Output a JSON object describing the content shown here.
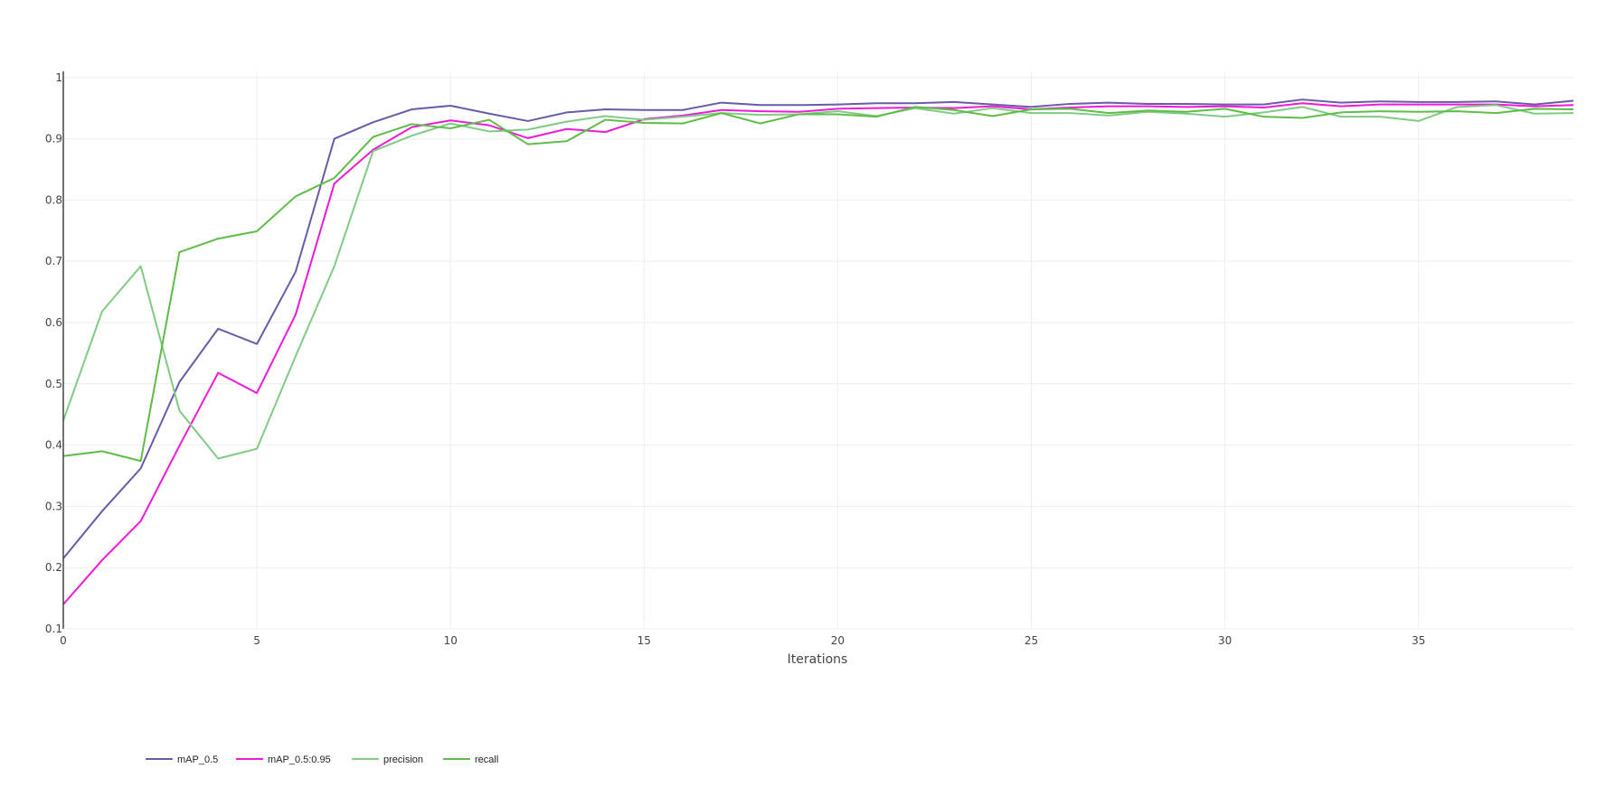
{
  "chart_data": {
    "type": "line",
    "title": "",
    "xlabel": "Iterations",
    "ylabel": "",
    "xlim": [
      0,
      39
    ],
    "ylim": [
      0.1,
      1.01
    ],
    "x_ticks": [
      "0",
      "5",
      "10",
      "15",
      "20",
      "25",
      "30",
      "35"
    ],
    "x_tick_values": [
      0,
      5,
      10,
      15,
      20,
      25,
      30,
      35
    ],
    "y_ticks": [
      "0.1",
      "0.2",
      "0.3",
      "0.4",
      "0.5",
      "0.6",
      "0.7",
      "0.8",
      "0.9",
      "1"
    ],
    "y_tick_values": [
      0.1,
      0.2,
      0.3,
      0.4,
      0.5,
      0.6,
      0.7,
      0.8,
      0.9,
      1.0
    ],
    "grid": true,
    "legend_position": "bottom-left",
    "x": [
      0,
      1,
      2,
      3,
      4,
      5,
      6,
      7,
      8,
      9,
      10,
      11,
      12,
      13,
      14,
      15,
      16,
      17,
      18,
      19,
      20,
      21,
      22,
      23,
      24,
      25,
      26,
      27,
      28,
      29,
      30,
      31,
      32,
      33,
      34,
      35,
      36,
      37,
      38,
      39
    ],
    "series": [
      {
        "name": "mAP_0.5",
        "color": "#6a5aa8",
        "values": [
          0.215,
          0.292,
          0.362,
          0.503,
          0.59,
          0.565,
          0.683,
          0.9,
          0.927,
          0.948,
          0.954,
          0.941,
          0.929,
          0.943,
          0.948,
          0.947,
          0.947,
          0.959,
          0.955,
          0.955,
          0.956,
          0.958,
          0.958,
          0.96,
          0.956,
          0.952,
          0.957,
          0.959,
          0.957,
          0.957,
          0.956,
          0.956,
          0.964,
          0.959,
          0.961,
          0.96,
          0.96,
          0.961,
          0.956,
          0.962
        ]
      },
      {
        "name": "mAP_0.5:0.95",
        "color": "#ee1ad6",
        "values": [
          0.14,
          0.212,
          0.276,
          0.399,
          0.518,
          0.485,
          0.613,
          0.827,
          0.882,
          0.919,
          0.93,
          0.922,
          0.901,
          0.916,
          0.911,
          0.932,
          0.938,
          0.947,
          0.945,
          0.944,
          0.949,
          0.95,
          0.951,
          0.95,
          0.953,
          0.948,
          0.951,
          0.953,
          0.953,
          0.952,
          0.953,
          0.951,
          0.958,
          0.953,
          0.956,
          0.956,
          0.956,
          0.956,
          0.953,
          0.955
        ]
      },
      {
        "name": "precision",
        "color": "#7fcb84",
        "values": [
          0.44,
          0.618,
          0.692,
          0.456,
          0.378,
          0.394,
          0.545,
          0.692,
          0.88,
          0.905,
          0.925,
          0.912,
          0.915,
          0.928,
          0.937,
          0.931,
          0.936,
          0.942,
          0.939,
          0.94,
          0.945,
          0.937,
          0.95,
          0.941,
          0.95,
          0.942,
          0.942,
          0.938,
          0.944,
          0.941,
          0.936,
          0.943,
          0.952,
          0.936,
          0.936,
          0.929,
          0.952,
          0.955,
          0.941,
          0.942
        ]
      },
      {
        "name": "recall",
        "color": "#5ebd46",
        "values": [
          0.382,
          0.39,
          0.374,
          0.715,
          0.737,
          0.749,
          0.806,
          0.836,
          0.903,
          0.924,
          0.917,
          0.931,
          0.891,
          0.896,
          0.931,
          0.926,
          0.925,
          0.942,
          0.925,
          0.94,
          0.94,
          0.936,
          0.952,
          0.947,
          0.937,
          0.948,
          0.949,
          0.942,
          0.946,
          0.944,
          0.949,
          0.936,
          0.934,
          0.943,
          0.945,
          0.944,
          0.945,
          0.942,
          0.949,
          0.948
        ]
      }
    ]
  }
}
